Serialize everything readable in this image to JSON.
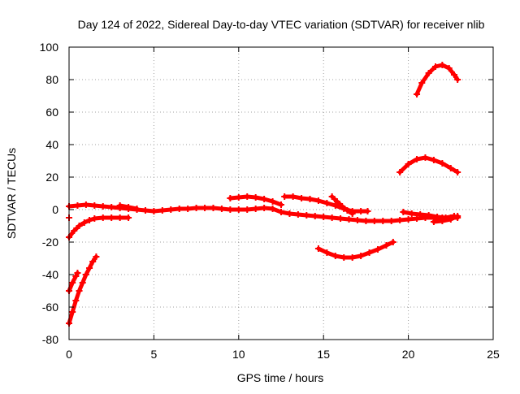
{
  "chart_data": {
    "type": "scatter",
    "title": "Day 124 of 2022, Sidereal Day-to-day VTEC variation (SDTVAR) for receiver nlib",
    "xlabel": "GPS time / hours",
    "ylabel": "SDTVAR / TECUs",
    "xlim": [
      0,
      25
    ],
    "ylim": [
      -80,
      100
    ],
    "x_ticks": [
      0,
      5,
      10,
      15,
      20,
      25
    ],
    "y_ticks": [
      -80,
      -60,
      -40,
      -20,
      0,
      20,
      40,
      60,
      80,
      100
    ],
    "x_tick_labels": [
      "0",
      "5",
      "10",
      "15",
      "20",
      "25"
    ],
    "y_tick_labels": [
      "-80",
      "-60",
      "-40",
      "-20",
      "0",
      "20",
      "40",
      "60",
      "80",
      "100"
    ],
    "grid": true,
    "marker": "plus",
    "marker_color": "#ff0000",
    "series": [
      {
        "x": [
          0.0,
          0.5,
          1.0,
          1.5,
          2.0,
          2.5,
          3.0,
          3.5,
          4.0,
          4.5,
          5.0,
          5.5,
          6.0,
          6.5,
          7.0,
          7.5,
          8.0,
          8.5,
          9.0,
          9.5,
          10.0,
          10.5,
          11.0,
          11.5,
          12.0,
          12.5,
          13.0,
          13.5,
          14.0,
          14.5,
          15.0,
          15.5,
          16.0,
          16.5,
          17.0,
          17.5,
          18.0,
          18.5,
          19.0,
          19.5,
          20.0,
          20.5,
          21.0,
          21.5,
          22.0,
          22.5,
          22.9
        ],
        "y": [
          2.0,
          2.5,
          3.0,
          2.5,
          2.0,
          1.5,
          1.0,
          0.5,
          0.0,
          -0.5,
          -1.0,
          -0.5,
          0.0,
          0.5,
          0.5,
          1.0,
          1.0,
          1.0,
          0.5,
          0.0,
          0.0,
          0.0,
          0.5,
          1.0,
          0.5,
          -1.5,
          -2.5,
          -3.0,
          -3.5,
          -4.0,
          -4.5,
          -5.0,
          -5.5,
          -6.0,
          -6.5,
          -7.0,
          -7.0,
          -7.0,
          -7.0,
          -6.5,
          -6.0,
          -5.5,
          -5.0,
          -5.0,
          -5.0,
          -5.0,
          -5.0
        ]
      },
      {
        "x": [
          0.0,
          0.3,
          0.6,
          0.9,
          1.2,
          1.5,
          2.0,
          2.5,
          3.0,
          3.5
        ],
        "y": [
          -17.0,
          -13.0,
          -10.0,
          -8.0,
          -6.5,
          -5.5,
          -5.0,
          -5.0,
          -5.0,
          -5.0
        ]
      },
      {
        "x": [
          3.0,
          3.5,
          4.0
        ],
        "y": [
          2.5,
          1.5,
          0.5
        ]
      },
      {
        "x": [
          0.0,
          0.2,
          0.4,
          0.6,
          0.8,
          1.0,
          1.2,
          1.4,
          1.6
        ],
        "y": [
          -70.0,
          -63.0,
          -56.0,
          -50.0,
          -45.0,
          -40.0,
          -36.0,
          -32.0,
          -29.0
        ]
      },
      {
        "x": [
          0.0,
          0.2,
          0.4,
          0.5
        ],
        "y": [
          -50.0,
          -45.0,
          -41.0,
          -39.0
        ]
      },
      {
        "x": [
          0.0
        ],
        "y": [
          -5.0
        ]
      },
      {
        "x": [
          9.5,
          10.0,
          10.5,
          11.0,
          11.5,
          12.0,
          12.5
        ],
        "y": [
          7.0,
          7.5,
          8.0,
          7.5,
          6.5,
          5.0,
          3.0
        ]
      },
      {
        "x": [
          12.7,
          13.2,
          13.7,
          14.2,
          14.7,
          15.2,
          15.7,
          16.2,
          16.7,
          17.2,
          17.6
        ],
        "y": [
          8.0,
          8.0,
          7.0,
          6.5,
          5.5,
          4.0,
          2.5,
          0.5,
          -1.0,
          -1.0,
          -1.0
        ]
      },
      {
        "x": [
          15.5,
          15.8,
          16.1,
          16.4,
          16.7
        ],
        "y": [
          8.0,
          5.0,
          2.0,
          -0.5,
          -2.5
        ]
      },
      {
        "x": [
          14.7,
          15.2,
          15.7,
          16.2,
          16.7,
          17.2,
          17.7,
          18.2,
          18.7,
          19.1
        ],
        "y": [
          -24.0,
          -26.5,
          -28.5,
          -29.5,
          -29.5,
          -28.5,
          -26.5,
          -24.5,
          -22.0,
          -20.0
        ]
      },
      {
        "x": [
          19.5,
          20.0,
          20.5,
          21.0,
          21.5,
          22.0,
          22.5,
          22.9
        ],
        "y": [
          23.0,
          28.0,
          31.0,
          32.0,
          30.5,
          28.5,
          25.5,
          23.0
        ]
      },
      {
        "x": [
          20.5,
          20.8,
          21.2,
          21.6,
          22.0,
          22.4,
          22.7,
          22.9
        ],
        "y": [
          71.0,
          78.0,
          84.0,
          88.0,
          89.0,
          87.0,
          83.0,
          80.0
        ]
      },
      {
        "x": [
          19.7,
          20.2,
          20.7,
          21.2,
          21.7,
          22.2,
          22.7
        ],
        "y": [
          -1.5,
          -2.5,
          -3.0,
          -3.5,
          -4.5,
          -5.0,
          -4.0
        ]
      },
      {
        "x": [
          21.5,
          22.0,
          22.5,
          22.9
        ],
        "y": [
          -7.5,
          -7.0,
          -6.0,
          -4.0
        ]
      }
    ]
  }
}
